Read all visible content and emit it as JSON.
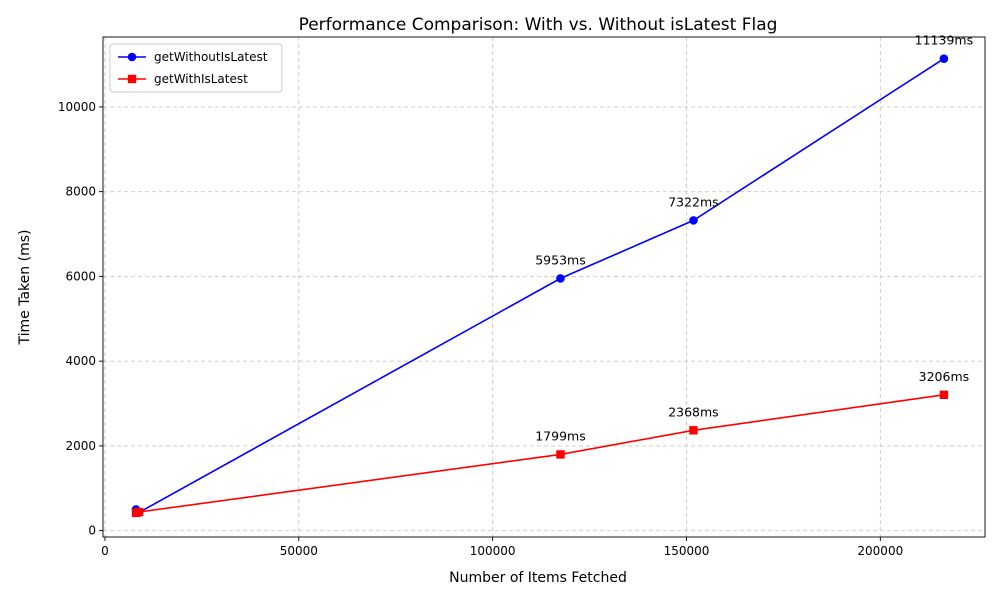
{
  "chart_data": {
    "type": "line",
    "title": "Performance Comparison: With vs. Without isLatest Flag",
    "xlabel": "Number of Items Fetched",
    "ylabel": "Time Taken (ms)",
    "xlim": [
      -500,
      227000
    ],
    "ylim": [
      -150,
      11650
    ],
    "xticks": [
      0,
      50000,
      100000,
      150000,
      200000
    ],
    "yticks": [
      0,
      2000,
      4000,
      6000,
      8000,
      10000
    ],
    "grid": true,
    "legend_position": "top-left",
    "series": [
      {
        "name": "getWithoutIsLatest",
        "color": "#0000ff",
        "marker": "circle",
        "points": [
          {
            "x": 8000,
            "y": 500,
            "label": null
          },
          {
            "x": 8800,
            "y": 430,
            "label": null
          },
          {
            "x": 117500,
            "y": 5953,
            "label": "5953ms"
          },
          {
            "x": 151800,
            "y": 7322,
            "label": "7322ms"
          },
          {
            "x": 216400,
            "y": 11139,
            "label": "11139ms"
          }
        ]
      },
      {
        "name": "getWithIsLatest",
        "color": "#ff0000",
        "marker": "square",
        "points": [
          {
            "x": 8000,
            "y": 420,
            "label": null
          },
          {
            "x": 8800,
            "y": 440,
            "label": null
          },
          {
            "x": 117500,
            "y": 1799,
            "label": "1799ms"
          },
          {
            "x": 151800,
            "y": 2368,
            "label": "2368ms"
          },
          {
            "x": 216400,
            "y": 3206,
            "label": "3206ms"
          }
        ]
      }
    ]
  }
}
